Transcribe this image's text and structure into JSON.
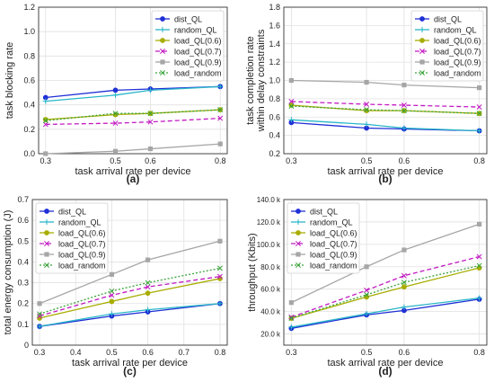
{
  "series_style": {
    "names": [
      "dist_QL",
      "random_QL",
      "load_QL(0.6)",
      "load_QL(0.7)",
      "load_QL(0.9)",
      "load_random"
    ],
    "colors": [
      "#1f2fd6",
      "#29b6c8",
      "#a8ad00",
      "#c218c2",
      "#a6a6a6",
      "#3aa33a"
    ],
    "markers": [
      "circle",
      "plus",
      "circle",
      "x",
      "square",
      "x"
    ],
    "dashes": [
      "solid",
      "solid",
      "solid",
      "dashed",
      "solid",
      "dotted"
    ]
  },
  "chart_data": [
    {
      "type": "line",
      "sublabel": "(a)",
      "xlabel": "task arrival rate per device",
      "ylabel": "task blocking rate",
      "x": [
        0.3,
        0.5,
        0.6,
        0.8
      ],
      "xlim": [
        0.28,
        0.82
      ],
      "xticks": [
        "0.3",
        "0.5",
        "0.6",
        "0.8"
      ],
      "xtick_values": [
        0.3,
        0.5,
        0.6,
        0.8
      ],
      "ylim": [
        0,
        1.2
      ],
      "yticks": [
        "0.0",
        "0.2",
        "0.4",
        "0.6",
        "0.8",
        "1.0",
        "1.2"
      ],
      "ytick_values": [
        0,
        0.2,
        0.4,
        0.6,
        0.8,
        1.0,
        1.2
      ],
      "legend": "top-right",
      "series": [
        {
          "name": "dist_QL",
          "values": [
            0.46,
            0.52,
            0.53,
            0.55
          ]
        },
        {
          "name": "random_QL",
          "values": [
            0.43,
            0.48,
            0.52,
            0.55
          ]
        },
        {
          "name": "load_QL(0.6)",
          "values": [
            0.28,
            0.32,
            0.33,
            0.36
          ]
        },
        {
          "name": "load_QL(0.7)",
          "values": [
            0.24,
            0.25,
            0.26,
            0.29
          ]
        },
        {
          "name": "load_QL(0.9)",
          "values": [
            0.0,
            0.02,
            0.04,
            0.08
          ]
        },
        {
          "name": "load_random",
          "values": [
            0.27,
            0.33,
            0.33,
            0.36
          ]
        }
      ]
    },
    {
      "type": "line",
      "sublabel": "(b)",
      "xlabel": "task arrival rate per device",
      "ylabel": "task completion rate\nwithin delay constraints",
      "x": [
        0.3,
        0.5,
        0.6,
        0.8
      ],
      "xlim": [
        0.28,
        0.82
      ],
      "xticks": [
        "0.3",
        "0.5",
        "0.6",
        "0.8"
      ],
      "xtick_values": [
        0.3,
        0.5,
        0.6,
        0.8
      ],
      "ylim": [
        0.2,
        1.8
      ],
      "yticks": [
        "0.2",
        "0.4",
        "0.6",
        "0.8",
        "1.0",
        "1.2",
        "1.4",
        "1.6",
        "1.8"
      ],
      "ytick_values": [
        0.2,
        0.4,
        0.6,
        0.8,
        1.0,
        1.2,
        1.4,
        1.6,
        1.8
      ],
      "legend": "top-right",
      "series": [
        {
          "name": "dist_QL",
          "values": [
            0.54,
            0.48,
            0.47,
            0.45
          ]
        },
        {
          "name": "random_QL",
          "values": [
            0.57,
            0.52,
            0.48,
            0.45
          ]
        },
        {
          "name": "load_QL(0.6)",
          "values": [
            0.73,
            0.67,
            0.67,
            0.64
          ]
        },
        {
          "name": "load_QL(0.7)",
          "values": [
            0.77,
            0.74,
            0.73,
            0.71
          ]
        },
        {
          "name": "load_QL(0.9)",
          "values": [
            1.0,
            0.98,
            0.95,
            0.92
          ]
        },
        {
          "name": "load_random",
          "values": [
            0.72,
            0.68,
            0.67,
            0.64
          ]
        }
      ]
    },
    {
      "type": "line",
      "sublabel": "(c)",
      "xlabel": "task arrival rate per device",
      "ylabel": "total energy consumption (J)",
      "x": [
        0.3,
        0.5,
        0.6,
        0.8
      ],
      "xlim": [
        0.28,
        0.82
      ],
      "xticks": [
        "0.3",
        "0.4",
        "0.5",
        "0.6",
        "0.7",
        "0.8"
      ],
      "xtick_values": [
        0.3,
        0.4,
        0.5,
        0.6,
        0.7,
        0.8
      ],
      "ylim": [
        0,
        0.7
      ],
      "yticks": [
        "0",
        "0.1",
        "0.2",
        "0.3",
        "0.4",
        "0.5",
        "0.6",
        "0.7"
      ],
      "ytick_values": [
        0,
        0.1,
        0.2,
        0.3,
        0.4,
        0.5,
        0.6,
        0.7
      ],
      "legend": "top-left",
      "series": [
        {
          "name": "dist_QL",
          "values": [
            0.09,
            0.14,
            0.16,
            0.2
          ]
        },
        {
          "name": "random_QL",
          "values": [
            0.09,
            0.15,
            0.17,
            0.2
          ]
        },
        {
          "name": "load_QL(0.6)",
          "values": [
            0.13,
            0.21,
            0.25,
            0.32
          ]
        },
        {
          "name": "load_QL(0.7)",
          "values": [
            0.14,
            0.24,
            0.28,
            0.33
          ]
        },
        {
          "name": "load_QL(0.9)",
          "values": [
            0.2,
            0.34,
            0.41,
            0.5
          ]
        },
        {
          "name": "load_random",
          "values": [
            0.15,
            0.26,
            0.3,
            0.37
          ]
        }
      ]
    },
    {
      "type": "line",
      "sublabel": "(d)",
      "xlabel": "task arrival rate per device",
      "ylabel": "throughput (Kbits)",
      "x": [
        0.3,
        0.5,
        0.6,
        0.8
      ],
      "xlim": [
        0.28,
        0.82
      ],
      "xticks": [
        "0.3",
        "0.5",
        "0.6",
        "0.8"
      ],
      "xtick_values": [
        0.3,
        0.5,
        0.6,
        0.8
      ],
      "ylim": [
        10000,
        140000
      ],
      "yticks": [
        "20.0 k",
        "40.0 k",
        "60.0 k",
        "80.0 k",
        "100.0 k",
        "120.0 k",
        "140.0 k"
      ],
      "ytick_values": [
        20000,
        40000,
        60000,
        80000,
        100000,
        120000,
        140000
      ],
      "legend": "top-left",
      "series": [
        {
          "name": "dist_QL",
          "values": [
            25000,
            37000,
            41000,
            51000
          ]
        },
        {
          "name": "random_QL",
          "values": [
            26000,
            38000,
            44000,
            52000
          ]
        },
        {
          "name": "load_QL(0.6)",
          "values": [
            34000,
            53000,
            62000,
            79000
          ]
        },
        {
          "name": "load_QL(0.7)",
          "values": [
            35000,
            59000,
            72000,
            89000
          ]
        },
        {
          "name": "load_QL(0.9)",
          "values": [
            48000,
            80000,
            95000,
            118000
          ]
        },
        {
          "name": "load_random",
          "values": [
            34000,
            55000,
            66000,
            81000
          ]
        }
      ]
    }
  ]
}
